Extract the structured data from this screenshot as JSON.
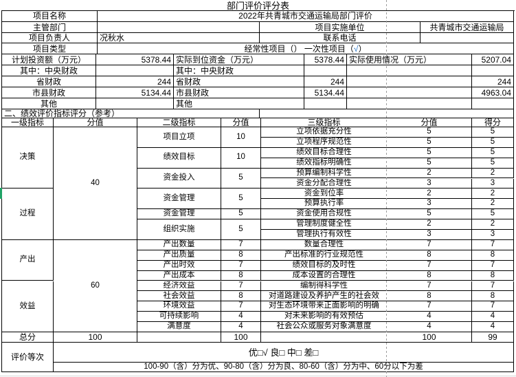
{
  "colors": {
    "border": "#000000",
    "check_blue": "#1f6fc5",
    "page_break_gray": "#9b9b9b",
    "selection_green": "#21a366",
    "faint_grid": "#d9d9d9"
  },
  "title": "部门评价评分表",
  "info": {
    "project_name_label": "项目名称",
    "project_name_value": "2022年共青城市交通运输局部门评价",
    "supervisor_label": "主管部门",
    "supervisor_value": "",
    "impl_unit_label": "项目实施单位",
    "impl_unit_value": "共青城市交通运输局",
    "leader_label": "项目负责人",
    "leader_value": "况秋水",
    "phone_label": "联系电话",
    "phone_value": "",
    "type_label": "项目类型",
    "type_part1": "经常性项目（）  一次性项目（",
    "type_check": "√",
    "type_part2": "）"
  },
  "finance": {
    "rows": [
      {
        "l1": "计划投资额（万元）",
        "v1": "5378.44",
        "l2": "实际到位资金（万元）",
        "v2": "5378.44",
        "l3": "实际使用情况（万元）",
        "v3": "5207.04"
      },
      {
        "l1": "其中：中央财政",
        "v1": "",
        "l2": "其中：中央财政",
        "v2": "",
        "l3": "",
        "v3": ""
      },
      {
        "l1": "省财政",
        "v1": "244",
        "l2": "省财政",
        "v2": "244",
        "l3": "",
        "v3": "244"
      },
      {
        "l1": "市县财政",
        "v1": "5134.44",
        "l2": "市县财政",
        "v2": "5134.44",
        "l3": "",
        "v3": "4963.04"
      },
      {
        "l1": "其他",
        "v1": "",
        "l2": "其他",
        "v2": "",
        "l3": "",
        "v3": ""
      }
    ]
  },
  "section2_heading": "二、绩效评价指标评分（参考）",
  "indicators": {
    "headers": [
      "一级指标",
      "分值",
      "二级指标",
      "分值",
      "三级指标",
      "分值",
      "得分"
    ],
    "level1": [
      {
        "label": "决策",
        "rows": [
          0,
          6
        ]
      },
      {
        "label": "过程",
        "rows": [
          6,
          11
        ]
      },
      {
        "label": "产出",
        "rows": [
          11,
          15
        ]
      },
      {
        "label": "效益",
        "rows": [
          15,
          20
        ]
      }
    ],
    "level1_scores": [
      {
        "value": "40",
        "rows": [
          0,
          11
        ]
      },
      {
        "value": "60",
        "rows": [
          11,
          20
        ]
      }
    ],
    "level2": [
      {
        "label": "项目立项",
        "score": "10",
        "rows": [
          0,
          2
        ]
      },
      {
        "label": "绩效目标",
        "score": "10",
        "rows": [
          2,
          4
        ]
      },
      {
        "label": "资金投入",
        "score": "5",
        "rows": [
          4,
          6
        ]
      },
      {
        "label": "资金管理",
        "score": "5",
        "rows": [
          6,
          8
        ]
      },
      {
        "label": "资金管理",
        "score": "5",
        "rows": [
          8,
          9
        ]
      },
      {
        "label": "组织实施",
        "score": "5",
        "rows": [
          9,
          11
        ]
      },
      {
        "label": "产出数量",
        "score": "7",
        "rows": [
          11,
          12
        ]
      },
      {
        "label": "产出质量",
        "score": "8",
        "rows": [
          12,
          13
        ]
      },
      {
        "label": "产出时效",
        "score": "7",
        "rows": [
          13,
          14
        ]
      },
      {
        "label": "产出成本",
        "score": "8",
        "rows": [
          14,
          15
        ]
      },
      {
        "label": "经济效益",
        "score": "7",
        "rows": [
          15,
          16
        ]
      },
      {
        "label": "社会效益",
        "score": "8",
        "rows": [
          16,
          17
        ]
      },
      {
        "label": "环境效益",
        "score": "7",
        "rows": [
          17,
          18
        ]
      },
      {
        "label": "可持续影响",
        "score": "4",
        "rows": [
          18,
          19
        ]
      },
      {
        "label": "满意度",
        "score": "4",
        "rows": [
          19,
          20
        ]
      }
    ],
    "level3": [
      {
        "name": "立项依据充分性",
        "score": "5",
        "got": "5"
      },
      {
        "name": "立项程序规范性",
        "score": "5",
        "got": "5"
      },
      {
        "name": "绩效目标合理性",
        "score": "5",
        "got": "5"
      },
      {
        "name": "绩效指标明确性",
        "score": "5",
        "got": "5"
      },
      {
        "name": "预算编制科学性",
        "score": "2",
        "got": "2"
      },
      {
        "name": "资金分配合理性",
        "score": "3",
        "got": "3"
      },
      {
        "name": "资金到位率",
        "score": "2",
        "got": "2"
      },
      {
        "name": "预算执行率",
        "score": "3",
        "got": "2"
      },
      {
        "name": "资金使用合规性",
        "score": "5",
        "got": "5"
      },
      {
        "name": "管理制度健全性",
        "score": "2",
        "got": "2"
      },
      {
        "name": "管理执行有效性",
        "score": "3",
        "got": "3"
      },
      {
        "name": "数量合理性",
        "score": "7",
        "got": "7"
      },
      {
        "name": "产出标准的行业规范性",
        "score": "8",
        "got": "8"
      },
      {
        "name": "绩效目标的及时性",
        "score": "7",
        "got": "7"
      },
      {
        "name": "成本设置的合理性",
        "score": "8",
        "got": "8"
      },
      {
        "name": "编制得科学性",
        "score": "7",
        "got": "7"
      },
      {
        "name": "对道路建设及养护产生的社会效",
        "score": "8",
        "got": "8"
      },
      {
        "name": "对生态环境带来正面影响的明确",
        "score": "7",
        "got": "7"
      },
      {
        "name": "对未来影响的有效预估",
        "score": "4",
        "got": "4"
      },
      {
        "name": "社会公众或服务对象满意度",
        "score": "4",
        "got": "4"
      }
    ]
  },
  "total_row": {
    "label": "总分",
    "level1_total": "100",
    "level2_total": "100",
    "level3_total": "100",
    "got_total": "99"
  },
  "grade": {
    "label": "评价等次",
    "options": "优□√ 良□ 中□ 差□",
    "note": "100-90（含）分为优、90-80（含）分为良、80-60（含）分为中、60分以下为差"
  }
}
